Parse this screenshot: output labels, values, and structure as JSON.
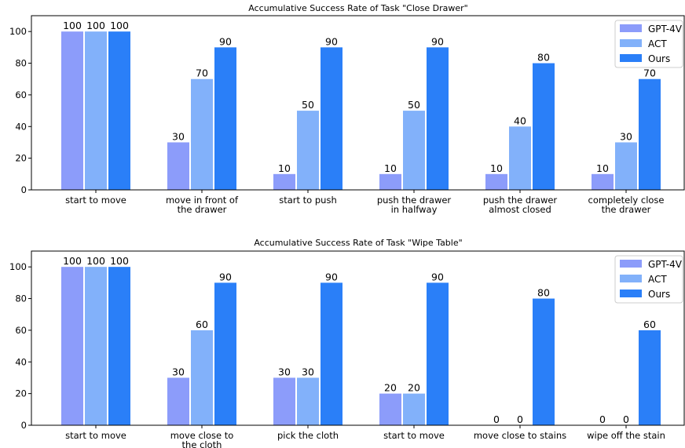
{
  "chart_data": [
    {
      "type": "bar",
      "title": "Accumulative Success Rate of Task \"Close Drawer\"",
      "categories": [
        [
          "start to move"
        ],
        [
          "move in front of",
          "the drawer"
        ],
        [
          "start to push"
        ],
        [
          "push the drawer",
          "in halfway"
        ],
        [
          "push the drawer",
          "almost closed"
        ],
        [
          "completely close",
          "the drawer"
        ]
      ],
      "series": [
        {
          "name": "GPT-4V",
          "color": "#8c9cfa",
          "values": [
            100,
            30,
            10,
            10,
            10,
            10
          ]
        },
        {
          "name": "ACT",
          "color": "#82b1fa",
          "values": [
            100,
            70,
            50,
            50,
            40,
            30
          ]
        },
        {
          "name": "Ours",
          "color": "#2a7ff8",
          "values": [
            100,
            90,
            90,
            90,
            80,
            70
          ]
        }
      ],
      "xlabel": "",
      "ylabel": "",
      "ylim": [
        0,
        110
      ],
      "yticks": [
        0,
        20,
        40,
        60,
        80,
        100
      ],
      "grid": false,
      "legend_position": "top-right"
    },
    {
      "type": "bar",
      "title": "Accumulative Success Rate of Task \"Wipe Table\"",
      "categories": [
        [
          "start to move"
        ],
        [
          "move close to",
          "the cloth"
        ],
        [
          "pick the cloth"
        ],
        [
          "start to move"
        ],
        [
          "move close to stains"
        ],
        [
          "wipe off the stain"
        ]
      ],
      "series": [
        {
          "name": "GPT-4V",
          "color": "#8c9cfa",
          "values": [
            100,
            30,
            30,
            20,
            0,
            0
          ]
        },
        {
          "name": "ACT",
          "color": "#82b1fa",
          "values": [
            100,
            60,
            30,
            20,
            0,
            0
          ]
        },
        {
          "name": "Ours",
          "color": "#2a7ff8",
          "values": [
            100,
            90,
            90,
            90,
            80,
            60
          ]
        }
      ],
      "xlabel": "",
      "ylabel": "",
      "ylim": [
        0,
        110
      ],
      "yticks": [
        0,
        20,
        40,
        60,
        80,
        100
      ],
      "grid": false,
      "legend_position": "top-right"
    }
  ]
}
